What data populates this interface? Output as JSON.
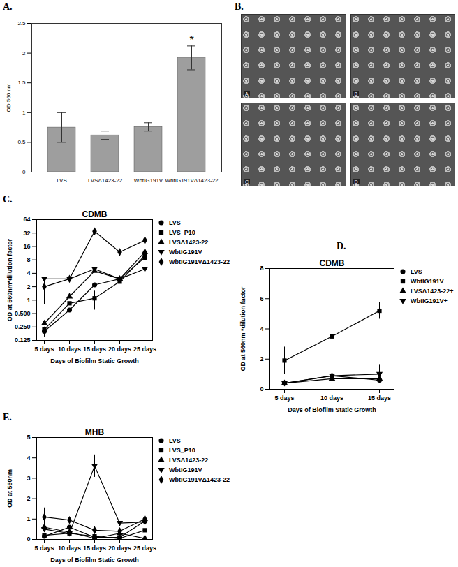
{
  "chart_data": [
    {
      "panel": "A.",
      "type": "bar",
      "y_label": "OD 560 nm",
      "categories": [
        "LVS",
        "LVSΔ1423-22",
        "WbtIG191V",
        "WbtIG191VΔ1423-22"
      ],
      "values": [
        0.75,
        0.62,
        0.76,
        1.92
      ],
      "errors": [
        0.25,
        0.07,
        0.07,
        0.2
      ],
      "color": "#9e9e9e",
      "ylim": [
        0,
        2.5
      ],
      "yticks": [
        0,
        {
          "value": 0.5,
          "label": "0.5"
        },
        1,
        {
          "value": 1.5,
          "label": "1.5"
        },
        2,
        {
          "value": 2.5,
          "label": "2.5"
        }
      ],
      "annotations": [
        {
          "category": "WbtIG191VΔ1423-22",
          "text": "*"
        }
      ]
    },
    {
      "panel": "B.",
      "type": "image",
      "images": [
        {
          "label": "A"
        },
        {
          "label": "B"
        },
        {
          "label": "C"
        },
        {
          "label": "D"
        }
      ]
    },
    {
      "panel": "C.",
      "type": "line",
      "title": "CDMB",
      "log": "y",
      "x_label": "Days of Biofilm Static Growth",
      "y_label": "OD at 560nm*dilution factor",
      "x": [
        "5 days",
        "10 days",
        "15 days",
        "20 days",
        "25 days"
      ],
      "ylim": [
        0.125,
        64
      ],
      "yticks": [
        0.125,
        {
          "value": 0.25,
          "label": "0.250"
        },
        {
          "value": 0.5,
          "label": "0.500"
        },
        1,
        2,
        4,
        8,
        16,
        32,
        64
      ],
      "series": [
        {
          "name": "LVS",
          "color": "#000000",
          "marker": "circle",
          "values": [
            0.2,
            0.6,
            2.2,
            3,
            9
          ],
          "errors": [
            0.05,
            null,
            null,
            null,
            null
          ]
        },
        {
          "name": "LVS_P10",
          "color": "#000000",
          "marker": "square",
          "values": [
            0.22,
            0.85,
            1.1,
            2.6,
            10
          ],
          "errors": [
            null,
            null,
            0.5,
            null,
            null
          ]
        },
        {
          "name": "LVSΔ1423-22",
          "color": "#000000",
          "marker": "triangle",
          "values": [
            0.3,
            1.2,
            4.5,
            3,
            12
          ],
          "errors": [
            null,
            null,
            null,
            null,
            null
          ]
        },
        {
          "name": "WbtIG191V",
          "color": "#000000",
          "marker": "triangle-down",
          "values": [
            3,
            3,
            5,
            3,
            5
          ],
          "errors": [
            null,
            null,
            null,
            null,
            null
          ]
        },
        {
          "name": "WbtIG191VΔ1423-22",
          "color": "#000000",
          "marker": "diamond",
          "values": [
            2,
            3,
            35,
            12,
            22
          ],
          "errors": [
            1.2,
            null,
            null,
            null,
            null
          ]
        }
      ]
    },
    {
      "panel": "D.",
      "type": "line",
      "title": "CDMB",
      "x_label": "Days of Biofilm Static Growth",
      "y_label": "OD at 560nm *dilution factor",
      "x": [
        "5 days",
        "10 days",
        "15 days"
      ],
      "ylim": [
        0,
        8
      ],
      "yticks": [
        0,
        2,
        4,
        6,
        8
      ],
      "series": [
        {
          "name": "LVS",
          "color": "#000000",
          "marker": "circle",
          "values": [
            0.4,
            0.9,
            0.6
          ],
          "errors": [
            0.1,
            0.2,
            0.2
          ]
        },
        {
          "name": "WbtIG191V",
          "color": "#000000",
          "marker": "square",
          "values": [
            1.9,
            3.5,
            5.2
          ],
          "errors": [
            0.9,
            0.45,
            0.55
          ]
        },
        {
          "name": "LVSΔ1423-22+",
          "color": "#000000",
          "marker": "triangle",
          "values": [
            0.4,
            0.7,
            0.7
          ],
          "errors": [
            0.1,
            0.2,
            0.2
          ]
        },
        {
          "name": "WbtIG191V+",
          "color": "#000000",
          "marker": "triangle-down",
          "values": [
            0.4,
            0.9,
            1.0
          ],
          "errors": [
            0.15,
            0.3,
            0.6
          ]
        }
      ]
    },
    {
      "panel": "E.",
      "type": "line",
      "title": "MHB",
      "x_label": "Days of Biofilm Static Growth",
      "y_label": "OD at 560nm",
      "x": [
        "5 days",
        "10 days",
        "15 days",
        "20 days",
        "25 days"
      ],
      "ylim": [
        0,
        5
      ],
      "yticks": [
        0,
        1,
        2,
        3,
        4,
        5
      ],
      "series": [
        {
          "name": "LVS",
          "color": "#000000",
          "marker": "circle",
          "values": [
            0.15,
            0.6,
            0.1,
            0.1,
            0.9
          ],
          "errors": [
            null,
            null,
            null,
            null,
            null
          ]
        },
        {
          "name": "LVS_P10",
          "color": "#000000",
          "marker": "square",
          "values": [
            0.2,
            0.3,
            0.15,
            0.05,
            0.45
          ],
          "errors": [
            null,
            null,
            null,
            null,
            null
          ]
        },
        {
          "name": "LVSΔ1423-22",
          "color": "#000000",
          "marker": "triangle",
          "values": [
            0.6,
            0.35,
            0.05,
            0.3,
            0.05
          ],
          "errors": [
            0.2,
            null,
            null,
            null,
            null
          ]
        },
        {
          "name": "WbtIG191V",
          "color": "#000000",
          "marker": "triangle-down",
          "values": [
            0.5,
            0.3,
            3.6,
            0.8,
            0.85
          ],
          "errors": [
            null,
            null,
            0.55,
            null,
            null
          ]
        },
        {
          "name": "WbtIG191VΔ1423-22",
          "color": "#000000",
          "marker": "diamond",
          "values": [
            1.1,
            0.95,
            0.45,
            0.4,
            1.0
          ],
          "errors": [
            0.45,
            null,
            0.15,
            null,
            null
          ]
        }
      ]
    }
  ]
}
